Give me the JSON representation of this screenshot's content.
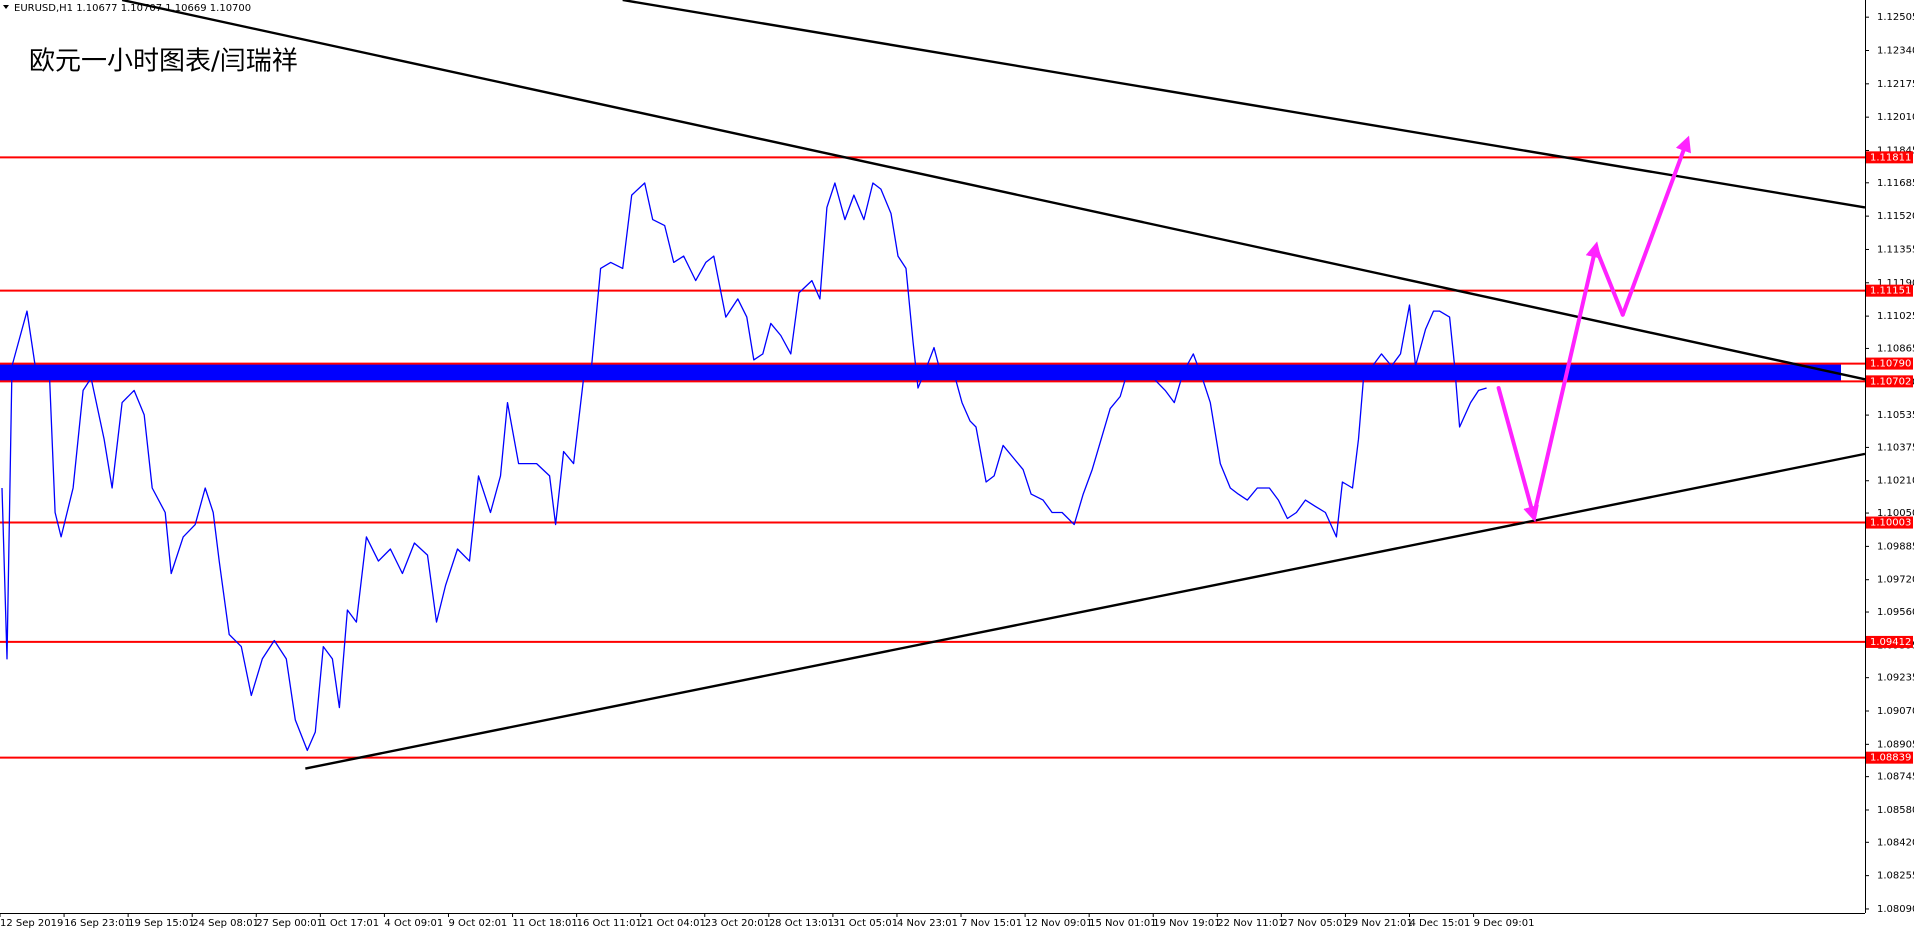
{
  "chart_data": {
    "type": "line",
    "header": "EURUSD,H1  1.10677 1.10707 1.10669 1.10700",
    "annotation": "欧元一小时图表/闫瑞祥",
    "x": [
      2,
      7,
      12,
      27,
      37,
      49,
      55,
      61,
      73,
      83,
      91,
      104,
      112,
      122,
      134,
      144,
      152,
      165,
      171,
      183,
      195,
      205,
      213,
      219,
      229,
      241,
      251,
      262,
      274,
      286,
      295,
      307,
      315,
      323,
      332,
      339,
      347,
      356,
      366,
      378,
      390,
      402,
      414,
      427,
      436,
      445,
      457,
      469,
      478,
      490,
      500,
      507,
      518,
      536,
      549,
      555,
      563,
      573,
      583,
      591,
      600,
      610,
      622,
      631,
      644,
      652,
      664,
      673,
      683,
      695,
      705,
      713,
      725,
      737,
      746,
      753,
      762,
      770,
      780,
      790,
      798,
      811,
      819,
      826,
      834,
      844,
      853,
      863,
      872,
      880,
      890,
      897,
      905,
      912,
      917,
      926,
      933,
      941,
      951,
      961,
      969,
      975,
      985,
      993,
      1002,
      1012,
      1022,
      1030,
      1042,
      1051,
      1061,
      1073,
      1082,
      1091,
      1100,
      1109,
      1119,
      1128,
      1140,
      1152,
      1164,
      1173,
      1182,
      1192,
      1201,
      1209,
      1219,
      1229,
      1237,
      1246,
      1256,
      1268,
      1277,
      1286,
      1295,
      1304,
      1314,
      1324,
      1335,
      1341,
      1351,
      1357,
      1363,
      1371,
      1380,
      1390,
      1399,
      1408,
      1414,
      1424,
      1432,
      1438,
      1448,
      1453,
      1458,
      1469,
      1477,
      1485
    ],
    "series": [
      {
        "name": "EURUSD,H1",
        "color": "#0000ff",
        "values": [
          1.10174,
          1.09328,
          1.10778,
          1.1105,
          1.10718,
          1.10778,
          1.10053,
          1.09932,
          1.10174,
          1.10657,
          1.10718,
          1.10416,
          1.10174,
          1.10597,
          1.10657,
          1.10536,
          1.10174,
          1.10053,
          1.09751,
          1.09932,
          1.09993,
          1.10174,
          1.10053,
          1.09812,
          1.09449,
          1.09389,
          1.09147,
          1.09328,
          1.09419,
          1.09328,
          1.09026,
          1.08875,
          1.08966,
          1.09389,
          1.09328,
          1.09087,
          1.0957,
          1.0951,
          1.09932,
          1.09812,
          1.09872,
          1.09751,
          1.09902,
          1.09842,
          1.0951,
          1.09691,
          1.09872,
          1.09812,
          1.10234,
          1.10053,
          1.10234,
          1.10597,
          1.10295,
          1.10295,
          1.10234,
          1.09993,
          1.10355,
          1.10295,
          1.10718,
          1.10778,
          1.11261,
          1.11291,
          1.11261,
          1.11624,
          1.11684,
          1.11503,
          1.11473,
          1.11291,
          1.11322,
          1.11201,
          1.11291,
          1.11322,
          1.1102,
          1.1111,
          1.1102,
          1.10808,
          1.10838,
          1.10989,
          1.10929,
          1.10838,
          1.1114,
          1.11201,
          1.1111,
          1.11563,
          1.11684,
          1.11503,
          1.11624,
          1.11503,
          1.11684,
          1.11654,
          1.11533,
          1.11322,
          1.11261,
          1.10899,
          1.10669,
          1.10778,
          1.10869,
          1.10718,
          1.10778,
          1.10597,
          1.10506,
          1.10476,
          1.10204,
          1.10234,
          1.10385,
          1.10325,
          1.10265,
          1.10144,
          1.10114,
          1.10053,
          1.10053,
          1.09993,
          1.10144,
          1.10265,
          1.10416,
          1.10567,
          1.10627,
          1.10778,
          1.10778,
          1.10718,
          1.10657,
          1.10597,
          1.10748,
          1.10838,
          1.10718,
          1.10597,
          1.10295,
          1.10174,
          1.10144,
          1.10114,
          1.10174,
          1.10174,
          1.10114,
          1.10023,
          1.10053,
          1.10114,
          1.10083,
          1.10053,
          1.09932,
          1.10204,
          1.10174,
          1.10416,
          1.10778,
          1.10778,
          1.10838,
          1.10778,
          1.10838,
          1.1108,
          1.10778,
          1.10959,
          1.1105,
          1.1105,
          1.1102,
          1.10778,
          1.10476,
          1.10597,
          1.10657,
          1.10669
        ]
      }
    ],
    "xlim": [
      0,
      1863
    ],
    "xticks": [
      {
        "value": 0,
        "label": "12 Sep 2019"
      },
      {
        "value": 64,
        "label": "16 Sep 23:01"
      },
      {
        "value": 128,
        "label": "19 Sep 15:01"
      },
      {
        "value": 192,
        "label": "24 Sep 08:01"
      },
      {
        "value": 256,
        "label": "27 Sep 00:01"
      },
      {
        "value": 320,
        "label": "1 Oct 17:01"
      },
      {
        "value": 384,
        "label": "4 Oct 09:01"
      },
      {
        "value": 448,
        "label": "9 Oct 02:01"
      },
      {
        "value": 512,
        "label": "11 Oct 18:01"
      },
      {
        "value": 576,
        "label": "16 Oct 11:01"
      },
      {
        "value": 640,
        "label": "21 Oct 04:01"
      },
      {
        "value": 704,
        "label": "23 Oct 20:01"
      },
      {
        "value": 768,
        "label": "28 Oct 13:01"
      },
      {
        "value": 832,
        "label": "31 Oct 05:01"
      },
      {
        "value": 896,
        "label": "4 Nov 23:01"
      },
      {
        "value": 960,
        "label": "7 Nov 15:01"
      },
      {
        "value": 1024,
        "label": "12 Nov 09:01"
      },
      {
        "value": 1088,
        "label": "15 Nov 01:01"
      },
      {
        "value": 1152,
        "label": "19 Nov 19:01"
      },
      {
        "value": 1216,
        "label": "22 Nov 11:01"
      },
      {
        "value": 1280,
        "label": "27 Nov 05:01"
      },
      {
        "value": 1344,
        "label": "29 Nov 21:01"
      },
      {
        "value": 1408,
        "label": "4 Dec 15:01"
      },
      {
        "value": 1472,
        "label": "9 Dec 09:01"
      }
    ],
    "ylim": [
      1.0807,
      1.1259
    ],
    "yticks": [
      1.12505,
      {
        "value": 1.1234,
        "label": "1.12340"
      },
      1.12175,
      {
        "value": 1.1201,
        "label": "1.12010"
      },
      1.11845,
      1.11685,
      {
        "value": 1.1152,
        "label": "1.11520"
      },
      1.11355,
      {
        "value": 1.1119,
        "label": "1.11190"
      },
      1.11025,
      1.10865,
      {
        "value": 1.107,
        "label": "1.10700"
      },
      1.10535,
      1.10375,
      {
        "value": 1.1021,
        "label": "1.10210"
      },
      {
        "value": 1.1005,
        "label": "1.10050"
      },
      1.09885,
      {
        "value": 1.0972,
        "label": "1.09720"
      },
      {
        "value": 1.0956,
        "label": "1.09560"
      },
      1.09395,
      1.09235,
      {
        "value": 1.0907,
        "label": "1.09070"
      },
      1.08905,
      1.08745,
      {
        "value": 1.0858,
        "label": "1.08580"
      },
      {
        "value": 1.0842,
        "label": "1.08420"
      },
      1.08255,
      {
        "value": 1.0809,
        "label": "1.08090"
      }
    ],
    "levels": [
      1.11811,
      1.11151,
      {
        "value": 1.1079,
        "label": "1.10790"
      },
      1.10702,
      1.10003,
      1.09412,
      1.08839
    ],
    "level_color": "#ff0000",
    "zone_color": "#0000ff",
    "trendlines": [
      {
        "x": [
          622,
          1863
        ],
        "y": [
          1.1259,
          1.11563
        ]
      },
      {
        "x": [
          122,
          1863
        ],
        "y": [
          1.1259,
          1.10712
        ]
      },
      {
        "x": [
          305,
          1863
        ],
        "y": [
          1.08785,
          1.10343
        ]
      }
    ],
    "trend_color": "#000000",
    "forecast": {
      "x": [
        1497,
        1532,
        1594,
        1621,
        1685
      ],
      "y": [
        1.10669,
        1.10035,
        1.11364,
        1.11032,
        1.11889
      ],
      "color": "#ff22ff"
    },
    "grid": false
  }
}
